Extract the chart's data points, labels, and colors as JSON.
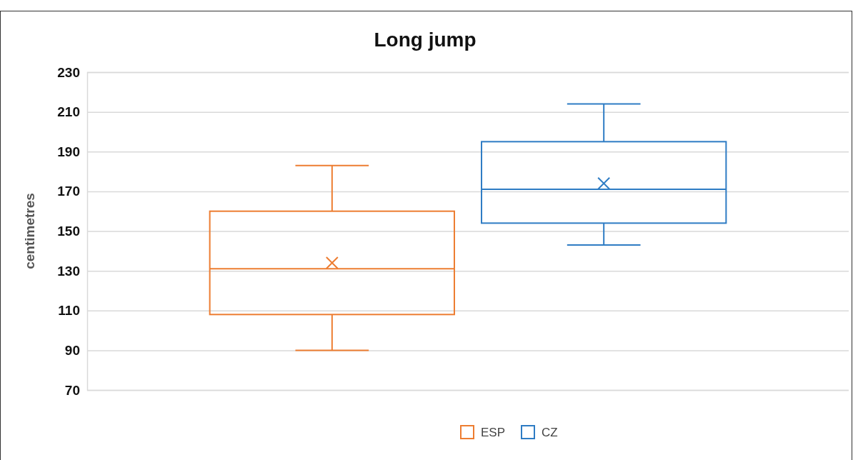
{
  "chart_data": {
    "type": "box",
    "title": "Long jump",
    "ylabel": "centimetres",
    "categories": [
      null
    ],
    "series": [
      {
        "name": "ESP",
        "color": "#ed7d31",
        "boxes": [
          {
            "low": 90,
            "q1": 108,
            "median": 131,
            "q3": 160,
            "high": 183,
            "mean": 134
          }
        ]
      },
      {
        "name": "CZ",
        "color": "#2e7cc4",
        "boxes": [
          {
            "low": 143,
            "q1": 154,
            "median": 171,
            "q3": 195,
            "high": 214,
            "mean": 174
          }
        ]
      }
    ],
    "ylim": [
      70,
      230
    ],
    "yticks": [
      70,
      90,
      110,
      130,
      150,
      170,
      190,
      210,
      230
    ],
    "grid": "y",
    "legend": "bottom",
    "marker": "cross"
  }
}
